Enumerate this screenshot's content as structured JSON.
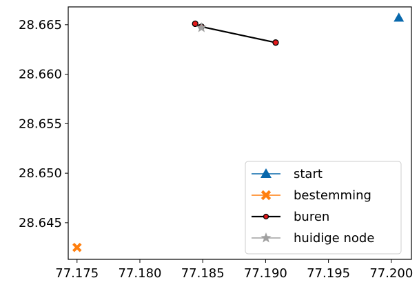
{
  "chart_data": {
    "type": "scatter",
    "xlim": [
      77.1743,
      77.2016
    ],
    "ylim": [
      28.6413,
      28.6668
    ],
    "x_ticks": [
      77.175,
      77.18,
      77.185,
      77.19,
      77.195,
      77.2
    ],
    "x_tick_labels": [
      "77.175",
      "77.180",
      "77.185",
      "77.190",
      "77.195",
      "77.200"
    ],
    "y_ticks": [
      28.645,
      28.65,
      28.655,
      28.66,
      28.665
    ],
    "y_tick_labels": [
      "28.645",
      "28.650",
      "28.655",
      "28.660",
      "28.665"
    ],
    "grid": false,
    "legend_position": "lower-right",
    "series": [
      {
        "name": "start",
        "marker": "triangle",
        "color": "#0868ac",
        "points": [
          [
            77.2006,
            28.6657
          ]
        ]
      },
      {
        "name": "bestemming",
        "marker": "x-filled",
        "color": "#ff7f0e",
        "points": [
          [
            77.175,
            28.6425
          ]
        ]
      },
      {
        "name": "buren",
        "marker": "circle",
        "color": "#000000",
        "marker_face": "#e31a1c",
        "line": true,
        "points": [
          [
            77.1844,
            28.6651
          ],
          [
            77.1849,
            28.6648
          ],
          [
            77.1908,
            28.6632
          ]
        ]
      },
      {
        "name": "huidige node",
        "marker": "star",
        "color": "#a0a0a0",
        "points": [
          [
            77.1849,
            28.6647
          ]
        ]
      }
    ]
  }
}
